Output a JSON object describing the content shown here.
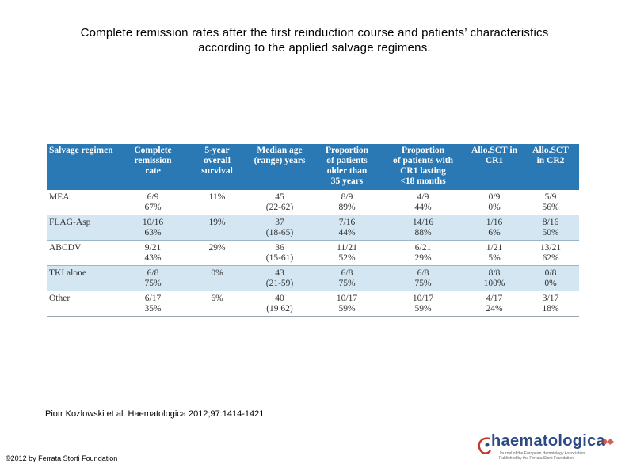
{
  "title_line1": "Complete remission rates after the first reinduction course and patients’ characteristics",
  "title_line2": "according to the applied salvage regimens.",
  "table": {
    "headers": [
      [
        "Salvage regimen"
      ],
      [
        "Complete remission",
        "rate"
      ],
      [
        "5-year",
        "overall survival"
      ],
      [
        "Median age",
        "(range) years"
      ],
      [
        "Proportion",
        "of patients",
        "older than",
        "35 years"
      ],
      [
        "Proportion",
        "of patients with",
        "CR1 lasting",
        "<18 months"
      ],
      [
        "Allo.SCT in",
        "CR1"
      ],
      [
        "Allo.SCT",
        "in CR2"
      ]
    ],
    "rows": [
      [
        "MEA",
        "6/9",
        "67%",
        "11%",
        "45",
        "(22-62)",
        "8/9",
        "89%",
        "4/9",
        "44%",
        "0/9",
        "0%",
        "5/9",
        "56%"
      ],
      [
        "FLAG-Asp",
        "10/16",
        "63%",
        "19%",
        "37",
        "(18-65)",
        "7/16",
        "44%",
        "14/16",
        "88%",
        "1/16",
        "6%",
        "8/16",
        "50%"
      ],
      [
        "ABCDV",
        "9/21",
        "43%",
        "29%",
        "36",
        "(15-61)",
        "11/21",
        "52%",
        "6/21",
        "29%",
        "1/21",
        "5%",
        "13/21",
        "62%"
      ],
      [
        "TKI alone",
        "6/8",
        "75%",
        "0%",
        "43",
        "(21-59)",
        "6/8",
        "75%",
        "6/8",
        "75%",
        "8/8",
        "100%",
        "0/8",
        "0%"
      ],
      [
        "Other",
        "6/17",
        "35%",
        "6%",
        "40",
        "(19 62)",
        "10/17",
        "59%",
        "10/17",
        "59%",
        "4/17",
        "24%",
        "3/17",
        "18%"
      ]
    ]
  },
  "citation": "Piotr Kozlowski et al. Haematologica 2012;97:1414-1421",
  "copyright": "©2012 by Ferrata Storti Foundation",
  "logo": {
    "name": "haematologica",
    "tagline_1": "Journal of the European Hematology Association",
    "tagline_2": "Published by the Ferrata Storti Foundation",
    "color": "#2b4a86",
    "accent": "#c0392b"
  },
  "colors": {
    "header": "#2a79b4",
    "shade": "#d4e6f2"
  }
}
